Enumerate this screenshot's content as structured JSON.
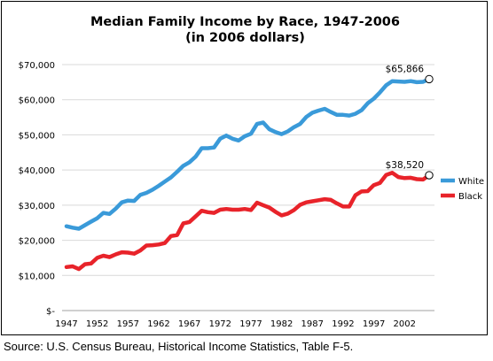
{
  "chart_data": {
    "type": "line",
    "title": "Median Family Income by Race, 1947-2006",
    "subtitle": "(in 2006 dollars)",
    "xlabel": "",
    "ylabel": "",
    "xlim": [
      1947,
      2006
    ],
    "ylim": [
      0,
      70000
    ],
    "grid": true,
    "legend_position": "right",
    "x_tick_labels": [
      "1947",
      "1952",
      "1957",
      "1962",
      "1967",
      "1972",
      "1977",
      "1982",
      "1987",
      "1992",
      "1997",
      "2002"
    ],
    "x_tick_values": [
      1947,
      1952,
      1957,
      1962,
      1967,
      1972,
      1977,
      1982,
      1987,
      1992,
      1997,
      2002
    ],
    "y_tick_labels": [
      "$-",
      "$10,000",
      "$20,000",
      "$30,000",
      "$40,000",
      "$50,000",
      "$60,000",
      "$70,000"
    ],
    "y_tick_values": [
      0,
      10000,
      20000,
      30000,
      40000,
      50000,
      60000,
      70000
    ],
    "x": [
      1947,
      1948,
      1949,
      1950,
      1951,
      1952,
      1953,
      1954,
      1955,
      1956,
      1957,
      1958,
      1959,
      1960,
      1961,
      1962,
      1963,
      1964,
      1965,
      1966,
      1967,
      1968,
      1969,
      1970,
      1971,
      1972,
      1973,
      1974,
      1975,
      1976,
      1977,
      1978,
      1979,
      1980,
      1981,
      1982,
      1983,
      1984,
      1985,
      1986,
      1987,
      1988,
      1989,
      1990,
      1991,
      1992,
      1993,
      1994,
      1995,
      1996,
      1997,
      1998,
      1999,
      2000,
      2001,
      2002,
      2003,
      2004,
      2005,
      2006
    ],
    "series": [
      {
        "name": "White",
        "color": "#3a9ad9",
        "values": [
          24000,
          23600,
          23300,
          24300,
          25300,
          26300,
          27800,
          27500,
          29000,
          30800,
          31300,
          31200,
          32900,
          33500,
          34400,
          35500,
          36700,
          37900,
          39500,
          41200,
          42200,
          43800,
          46200,
          46200,
          46400,
          48900,
          49800,
          48900,
          48400,
          49600,
          50300,
          53100,
          53500,
          51600,
          50800,
          50200,
          51000,
          52200,
          53100,
          55100,
          56300,
          56900,
          57400,
          56500,
          55700,
          55700,
          55500,
          56000,
          57000,
          59000,
          60300,
          62100,
          64100,
          65300,
          65200,
          65100,
          65300,
          65000,
          65100,
          65866
        ]
      },
      {
        "name": "Black",
        "color": "#e8232a",
        "values": [
          12400,
          12600,
          11800,
          13200,
          13400,
          15000,
          15600,
          15200,
          16000,
          16600,
          16500,
          16200,
          17100,
          18500,
          18600,
          18800,
          19200,
          21200,
          21500,
          24800,
          25200,
          26800,
          28400,
          28000,
          27800,
          28700,
          28900,
          28700,
          28700,
          28900,
          28600,
          30700,
          30000,
          29300,
          28100,
          27100,
          27600,
          28600,
          30100,
          30800,
          31100,
          31400,
          31700,
          31500,
          30500,
          29600,
          29600,
          32800,
          33900,
          34000,
          35700,
          36300,
          38600,
          39200,
          38000,
          37700,
          37800,
          37400,
          37300,
          38520
        ]
      }
    ],
    "annotations": [
      {
        "series": "White",
        "x": 2006,
        "text": "$65,866"
      },
      {
        "series": "Black",
        "x": 2006,
        "text": "$38,520"
      }
    ]
  },
  "source_note": "Source: U.S. Census Bureau, Historical Income Statistics, Table F-5."
}
